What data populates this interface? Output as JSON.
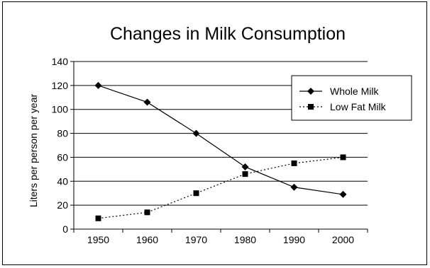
{
  "chart_data": {
    "type": "line",
    "title": "Changes in Milk Consumption",
    "xlabel": "",
    "ylabel": "Liters per person per year",
    "x": [
      "1950",
      "1960",
      "1970",
      "1980",
      "1990",
      "2000"
    ],
    "ylim": [
      0,
      140
    ],
    "yticks": [
      "0",
      "20",
      "40",
      "60",
      "80",
      "100",
      "120",
      "140"
    ],
    "grid": "horizontal",
    "legend_position": "top-right",
    "series": [
      {
        "name": "Whole Milk",
        "values": [
          120,
          106,
          80,
          52,
          35,
          29
        ],
        "marker": "diamond",
        "line": "solid",
        "color": "#000000"
      },
      {
        "name": "Low Fat Milk",
        "values": [
          9,
          14,
          30,
          46,
          55,
          60
        ],
        "marker": "square",
        "line": "dotted",
        "color": "#000000"
      }
    ]
  }
}
